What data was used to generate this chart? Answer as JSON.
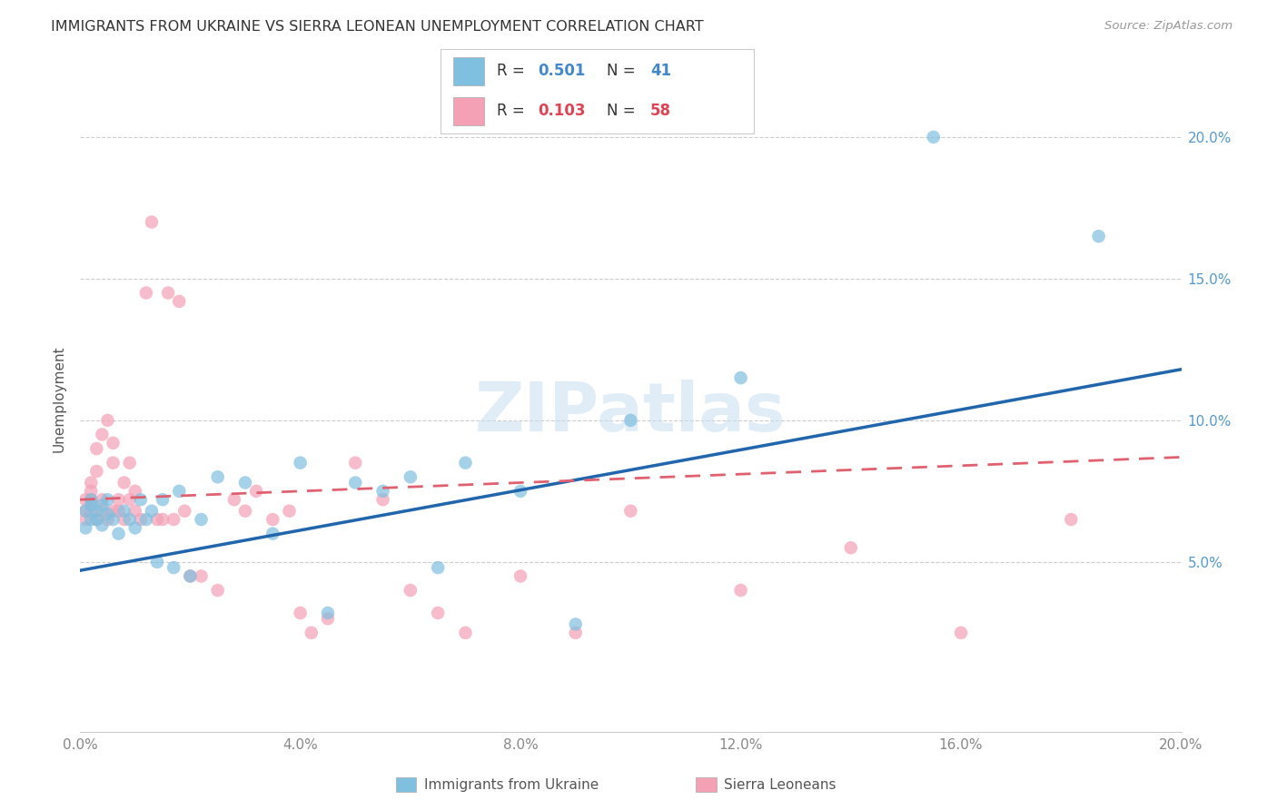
{
  "title": "IMMIGRANTS FROM UKRAINE VS SIERRA LEONEAN UNEMPLOYMENT CORRELATION CHART",
  "source": "Source: ZipAtlas.com",
  "ylabel": "Unemployment",
  "legend_blue_R": "0.501",
  "legend_blue_N": "41",
  "legend_pink_R": "0.103",
  "legend_pink_N": "58",
  "legend_blue_label": "Immigrants from Ukraine",
  "legend_pink_label": "Sierra Leoneans",
  "xlim": [
    0.0,
    0.2
  ],
  "ylim": [
    -0.01,
    0.225
  ],
  "yticks": [
    0.05,
    0.1,
    0.15,
    0.2
  ],
  "xticks": [
    0.0,
    0.04,
    0.08,
    0.12,
    0.16,
    0.2
  ],
  "blue_color": "#7fbfdf",
  "pink_color": "#f4a0b5",
  "blue_line_color": "#2166ac",
  "pink_line_color": "#e06070",
  "background_color": "#ffffff",
  "ukraine_x": [
    0.001,
    0.001,
    0.002,
    0.002,
    0.002,
    0.003,
    0.003,
    0.004,
    0.004,
    0.005,
    0.005,
    0.006,
    0.007,
    0.008,
    0.009,
    0.01,
    0.011,
    0.012,
    0.013,
    0.014,
    0.015,
    0.017,
    0.018,
    0.02,
    0.022,
    0.025,
    0.03,
    0.035,
    0.04,
    0.045,
    0.05,
    0.055,
    0.06,
    0.065,
    0.07,
    0.08,
    0.09,
    0.1,
    0.12,
    0.155,
    0.185
  ],
  "ukraine_y": [
    0.068,
    0.062,
    0.065,
    0.07,
    0.072,
    0.065,
    0.068,
    0.07,
    0.063,
    0.067,
    0.072,
    0.065,
    0.06,
    0.068,
    0.065,
    0.062,
    0.072,
    0.065,
    0.068,
    0.05,
    0.072,
    0.048,
    0.075,
    0.045,
    0.065,
    0.08,
    0.078,
    0.06,
    0.085,
    0.032,
    0.078,
    0.075,
    0.08,
    0.048,
    0.085,
    0.075,
    0.028,
    0.1,
    0.115,
    0.2,
    0.165
  ],
  "sierra_x": [
    0.001,
    0.001,
    0.001,
    0.002,
    0.002,
    0.002,
    0.002,
    0.003,
    0.003,
    0.003,
    0.004,
    0.004,
    0.004,
    0.005,
    0.005,
    0.006,
    0.006,
    0.006,
    0.007,
    0.007,
    0.008,
    0.008,
    0.009,
    0.009,
    0.01,
    0.01,
    0.011,
    0.012,
    0.013,
    0.014,
    0.015,
    0.016,
    0.017,
    0.018,
    0.019,
    0.02,
    0.022,
    0.025,
    0.028,
    0.03,
    0.032,
    0.035,
    0.038,
    0.04,
    0.042,
    0.045,
    0.05,
    0.055,
    0.06,
    0.065,
    0.07,
    0.08,
    0.09,
    0.1,
    0.12,
    0.14,
    0.16,
    0.18
  ],
  "sierra_y": [
    0.068,
    0.072,
    0.065,
    0.075,
    0.068,
    0.072,
    0.078,
    0.09,
    0.082,
    0.065,
    0.095,
    0.068,
    0.072,
    0.1,
    0.065,
    0.085,
    0.092,
    0.068,
    0.068,
    0.072,
    0.078,
    0.065,
    0.085,
    0.072,
    0.068,
    0.075,
    0.065,
    0.145,
    0.17,
    0.065,
    0.065,
    0.145,
    0.065,
    0.142,
    0.068,
    0.045,
    0.045,
    0.04,
    0.072,
    0.068,
    0.075,
    0.065,
    0.068,
    0.032,
    0.025,
    0.03,
    0.085,
    0.072,
    0.04,
    0.032,
    0.025,
    0.045,
    0.025,
    0.068,
    0.04,
    0.055,
    0.025,
    0.065
  ],
  "pink_line_x0": 0.0,
  "pink_line_y0": 0.072,
  "pink_line_x1": 0.2,
  "pink_line_y1": 0.087,
  "blue_line_x0": 0.0,
  "blue_line_y0": 0.047,
  "blue_line_x1": 0.2,
  "blue_line_y1": 0.118
}
